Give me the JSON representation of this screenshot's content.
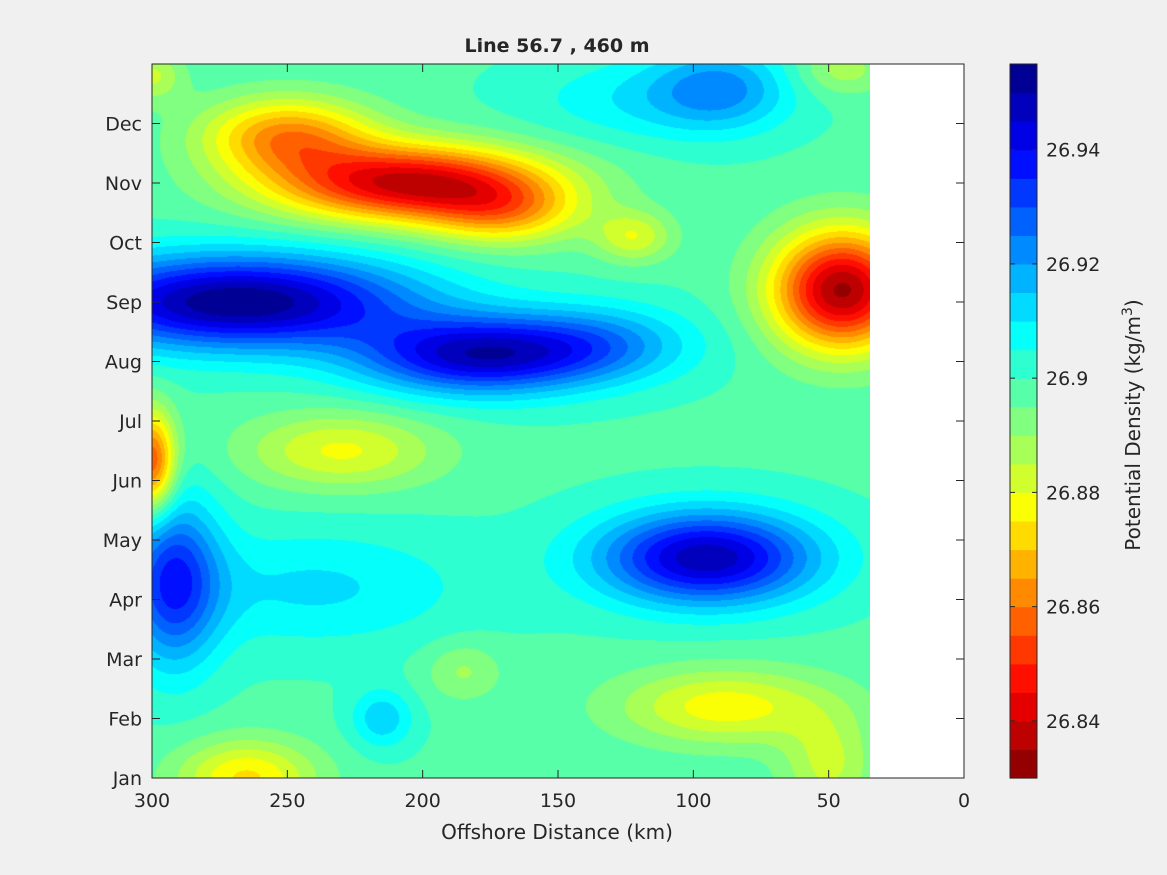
{
  "chart_data": {
    "type": "heatmap",
    "subtype": "filled-contour",
    "title": "Line 56.7 , 460 m",
    "xlabel": "Offshore Distance (km)",
    "xlim": [
      0,
      300
    ],
    "x_reversed": true,
    "x_ticks": [
      300,
      250,
      200,
      150,
      100,
      50,
      0
    ],
    "x_data_extent": [
      35,
      300
    ],
    "y_categories": [
      "Jan",
      "Feb",
      "Mar",
      "Apr",
      "May",
      "Jun",
      "Jul",
      "Aug",
      "Sep",
      "Oct",
      "Nov",
      "Dec"
    ],
    "y_range_months": [
      1,
      13
    ],
    "colorbar": {
      "label": "Potential Density (kg/m3)",
      "label_text": "Potential Density (kg/m",
      "label_superscript": "3",
      "label_suffix": ")",
      "range": [
        26.83,
        26.955
      ],
      "levels": 25,
      "step": 0.005,
      "ticks": [
        "26.84",
        "26.86",
        "26.88",
        "26.9",
        "26.92",
        "26.94"
      ],
      "colormap": "jet",
      "low_color": "#d40000",
      "high_color": "#00008f"
    },
    "field": {
      "base": 26.899,
      "features": [
        {
          "label": "low-density core, Nov",
          "x_km": 205,
          "month": 11.0,
          "sx_km": 35,
          "sy_months": 0.45,
          "delta": -0.06
        },
        {
          "label": "low-density band, Nov-Dec",
          "x_km": 250,
          "month": 11.8,
          "sx_km": 22,
          "sy_months": 0.45,
          "delta": -0.035
        },
        {
          "label": "low-density tail, Oct-Nov",
          "x_km": 170,
          "month": 10.5,
          "sx_km": 20,
          "sy_months": 0.4,
          "delta": -0.025
        },
        {
          "label": "low-density cell, Oct",
          "x_km": 122,
          "month": 10.1,
          "sx_km": 10,
          "sy_months": 0.3,
          "delta": -0.018
        },
        {
          "label": "low-density nearshore, Sep",
          "x_km": 45,
          "month": 9.2,
          "sx_km": 18,
          "sy_months": 0.7,
          "delta": -0.065
        },
        {
          "label": "high-density core, Sep",
          "x_km": 268,
          "month": 9.0,
          "sx_km": 45,
          "sy_months": 0.55,
          "delta": 0.056
        },
        {
          "label": "high-density cell, Aug",
          "x_km": 180,
          "month": 8.1,
          "sx_km": 30,
          "sy_months": 0.45,
          "delta": 0.046
        },
        {
          "label": "high-density band, Aug",
          "x_km": 135,
          "month": 8.3,
          "sx_km": 25,
          "sy_months": 0.45,
          "delta": 0.02
        },
        {
          "label": "high-density core, Apr-May",
          "x_km": 95,
          "month": 4.7,
          "sx_km": 28,
          "sy_months": 0.55,
          "delta": 0.05
        },
        {
          "label": "high-density offshore, Apr",
          "x_km": 292,
          "month": 4.3,
          "sx_km": 12,
          "sy_months": 1.0,
          "delta": 0.035
        },
        {
          "label": "high-density cell, Dec",
          "x_km": 90,
          "month": 12.6,
          "sx_km": 18,
          "sy_months": 0.5,
          "delta": 0.02
        },
        {
          "label": "low-density band, Jun-Jul",
          "x_km": 230,
          "month": 6.5,
          "sx_km": 25,
          "sy_months": 0.45,
          "delta": -0.02
        },
        {
          "label": "low-density offshore, Jun",
          "x_km": 300,
          "month": 6.3,
          "sx_km": 6,
          "sy_months": 0.6,
          "delta": -0.045
        },
        {
          "label": "low-density cell, Feb",
          "x_km": 88,
          "month": 2.2,
          "sx_km": 28,
          "sy_months": 0.45,
          "delta": -0.022
        },
        {
          "label": "low-density corner, Jan",
          "x_km": 265,
          "month": 1.0,
          "sx_km": 18,
          "sy_months": 0.45,
          "delta": -0.025
        },
        {
          "label": "low-density corner, Jan nearshore",
          "x_km": 50,
          "month": 1.2,
          "sx_km": 12,
          "sy_months": 0.6,
          "delta": -0.015
        },
        {
          "label": "low-density corner, Dec nearshore",
          "x_km": 45,
          "month": 12.9,
          "sx_km": 12,
          "sy_months": 0.3,
          "delta": -0.012
        },
        {
          "label": "low-density corner, Dec offshore",
          "x_km": 300,
          "month": 12.8,
          "sx_km": 8,
          "sy_months": 0.3,
          "delta": -0.015
        },
        {
          "label": "low-density cell, Feb offshore",
          "x_km": 185,
          "month": 2.8,
          "sx_km": 10,
          "sy_months": 0.35,
          "delta": -0.01
        },
        {
          "label": "high-density cell, Apr-May mid",
          "x_km": 240,
          "month": 4.2,
          "sx_km": 40,
          "sy_months": 0.7,
          "delta": 0.012
        },
        {
          "label": "high-density cell, Feb",
          "x_km": 215,
          "month": 2.0,
          "sx_km": 8,
          "sy_months": 0.35,
          "delta": 0.015
        },
        {
          "label": "high-density cell, Dec mid",
          "x_km": 120,
          "month": 12.4,
          "sx_km": 30,
          "sy_months": 0.5,
          "delta": 0.01
        }
      ]
    }
  }
}
